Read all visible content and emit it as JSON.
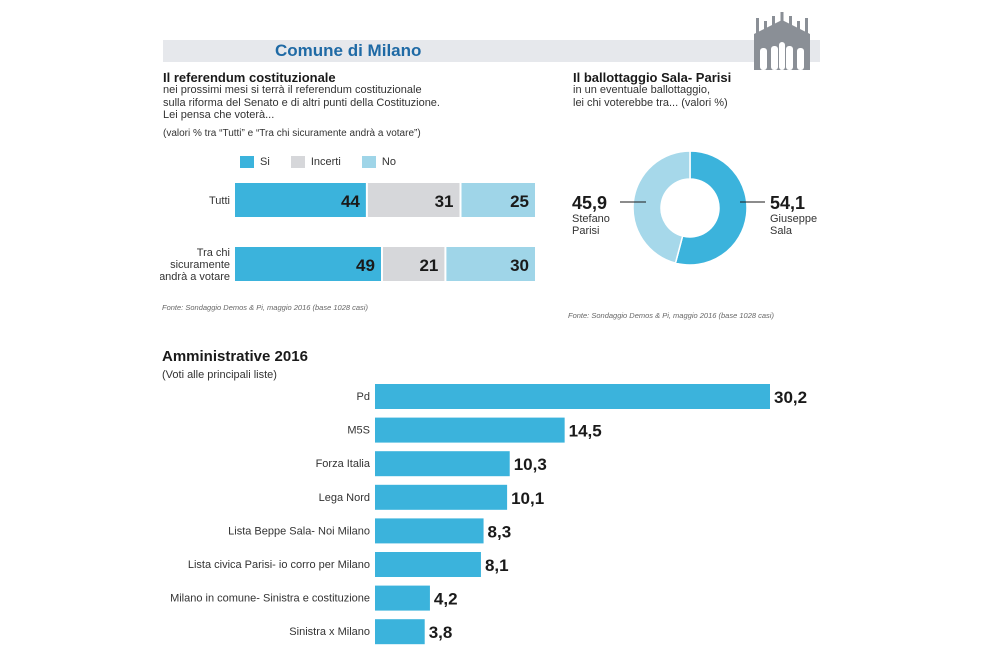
{
  "header": {
    "title": "Comune di Milano",
    "logo_icon": "duomo-cathedral-icon"
  },
  "referendum": {
    "title": "Il referendum costituzionale",
    "desc_lines": [
      "nei prossimi mesi si terrà il referendum costituzionale",
      "sulla riforma del Senato e di altri punti della Costituzione.",
      "Lei pensa che voterà..."
    ],
    "note": "(valori %  tra “Tutti” e “Tra chi sicuramente andrà a votare”)",
    "source": "Fonte: Sondaggio Demos & Pi, maggio 2016 (base 1028 casi)"
  },
  "ballottaggio": {
    "title": "Il ballottaggio Sala- Parisi",
    "desc_lines": [
      "in un eventuale ballottaggio,",
      "lei chi voterebbe tra... (valori %)"
    ],
    "source": "Fonte: Sondaggio Demos & Pi, maggio 2016 (base 1028 casi)"
  },
  "colors": {
    "si": "#3bb3dc",
    "incerti": "#d6d7da",
    "no": "#9fd5e8",
    "sala": "#3bb3dc",
    "parisi": "#a6d8ea",
    "bars": "#3bb3dc",
    "header_band": "#e6e8ec",
    "title_blue": "#1f6aa5"
  },
  "chart_data": [
    {
      "type": "bar",
      "orientation": "horizontal-stacked",
      "categories": [
        "Tutti",
        "Tra chi sicuramente andrà a votare"
      ],
      "category_lines": [
        [
          "Tutti"
        ],
        [
          "Tra chi",
          "sicuramente",
          "andrà a votare"
        ]
      ],
      "series": [
        {
          "name": "Si",
          "values": [
            44,
            49
          ]
        },
        {
          "name": "Incerti",
          "values": [
            31,
            21
          ]
        },
        {
          "name": "No",
          "values": [
            25,
            30
          ]
        }
      ],
      "legend_position": "top"
    },
    {
      "type": "pie",
      "donut": true,
      "slices": [
        {
          "name": "Giuseppe Sala",
          "name_lines": [
            "Giuseppe",
            "Sala"
          ],
          "value": 54.1,
          "value_label": "54,1"
        },
        {
          "name": "Stefano Parisi",
          "name_lines": [
            "Stefano",
            "Parisi"
          ],
          "value": 45.9,
          "value_label": "45,9"
        }
      ]
    },
    {
      "type": "bar",
      "orientation": "horizontal",
      "title": "Amministrative 2016",
      "subtitle": "(Voti alle principali liste)",
      "categories": [
        "Pd",
        "M5S",
        "Forza Italia",
        "Lega Nord",
        "Lista Beppe Sala- Noi Milano",
        "Lista civica Parisi- io corro per Milano",
        "Milano in comune- Sinistra e costituzione",
        "Sinistra x Milano"
      ],
      "values": [
        30.2,
        14.5,
        10.3,
        10.1,
        8.3,
        8.1,
        4.2,
        3.8
      ],
      "value_labels": [
        "30,2",
        "14,5",
        "10,3",
        "10,1",
        "8,3",
        "8,1",
        "4,2",
        "3,8"
      ]
    }
  ]
}
